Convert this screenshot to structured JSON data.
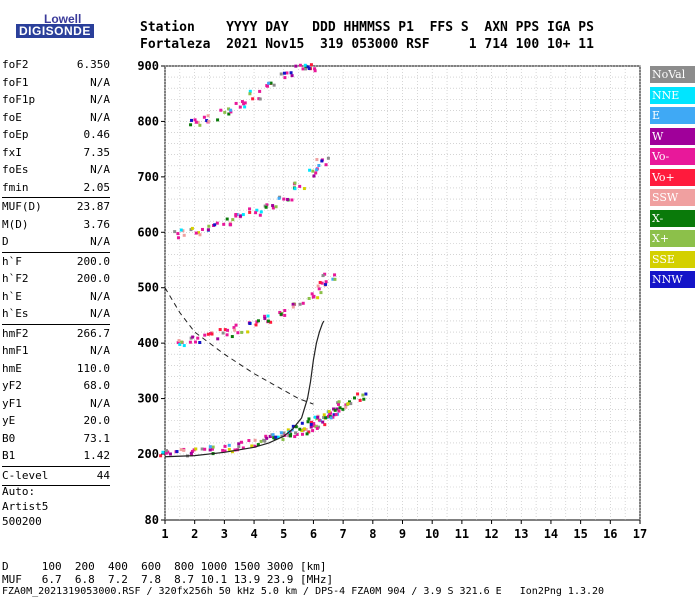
{
  "logo": {
    "line1": "Lowell",
    "line2": "DIGISONDE"
  },
  "header": {
    "line1": "Station    YYYY DAY   DDD HHMMSS P1  FFS S  AXN PPS IGA PS",
    "line2": "Fortaleza  2021 Nov15  319 053000 RSF     1 714 100 10+ 11"
  },
  "params": [
    {
      "label": "foF2",
      "value": "6.350"
    },
    {
      "label": "foF1",
      "value": "N/A"
    },
    {
      "label": "foF1p",
      "value": "N/A"
    },
    {
      "label": "foE",
      "value": "N/A"
    },
    {
      "label": "foEp",
      "value": "0.46"
    },
    {
      "label": "fxI",
      "value": "7.35"
    },
    {
      "label": "foEs",
      "value": "N/A"
    },
    {
      "label": "fmin",
      "value": "2.05"
    },
    {
      "label": "MUF(D)",
      "value": "23.87"
    },
    {
      "label": "M(D)",
      "value": "3.76"
    },
    {
      "label": "D",
      "value": "N/A"
    },
    {
      "label": "h`F",
      "value": "200.0"
    },
    {
      "label": "h`F2",
      "value": "200.0"
    },
    {
      "label": "h`E",
      "value": "N/A"
    },
    {
      "label": "h`Es",
      "value": "N/A"
    },
    {
      "label": "hmF2",
      "value": "266.7"
    },
    {
      "label": "hmF1",
      "value": "N/A"
    },
    {
      "label": "hmE",
      "value": "110.0"
    },
    {
      "label": "yF2",
      "value": "68.0"
    },
    {
      "label": "yF1",
      "value": "N/A"
    },
    {
      "label": "yE",
      "value": "20.0"
    },
    {
      "label": "B0",
      "value": "73.1"
    },
    {
      "label": "B1",
      "value": "1.42"
    },
    {
      "label": "C-level",
      "value": "44"
    }
  ],
  "auto": {
    "line1": "Auto:",
    "line2": "Artist5",
    "line3": "500200"
  },
  "legend": [
    {
      "label": "NoVal",
      "color": "#8c8c8c"
    },
    {
      "label": "NNE",
      "color": "#00e5ff"
    },
    {
      "label": "E",
      "color": "#3fa9f5"
    },
    {
      "label": "W",
      "color": "#a0009a"
    },
    {
      "label": "Vo-",
      "color": "#e8189a"
    },
    {
      "label": "Vo+",
      "color": "#ff1a3c"
    },
    {
      "label": "SSW",
      "color": "#f0a0a0"
    },
    {
      "label": "X-",
      "color": "#0a7a0a"
    },
    {
      "label": "X+",
      "color": "#8cc04a"
    },
    {
      "label": "SSE",
      "color": "#d4d000"
    },
    {
      "label": "NNW",
      "color": "#1414c8"
    }
  ],
  "chart_data": {
    "type": "scatter",
    "xlim": [
      1,
      17
    ],
    "ylim": [
      80,
      900
    ],
    "x_ticks": [
      1,
      2,
      3,
      4,
      5,
      6,
      7,
      8,
      9,
      10,
      11,
      12,
      13,
      14,
      15,
      16,
      17
    ],
    "y_ticks": [
      80,
      200,
      300,
      400,
      500,
      600,
      700,
      800,
      900
    ],
    "grid": true,
    "series": [
      {
        "label": "F2 trace",
        "color": "#e8189a",
        "x": [
          1.0,
          1.5,
          2.0,
          2.5,
          3.0,
          3.5,
          4.0,
          4.5,
          5.0,
          5.3,
          5.6,
          5.9,
          6.1,
          6.3,
          6.5,
          6.7,
          6.9
        ],
        "y": [
          205,
          206,
          208,
          210,
          213,
          217,
          222,
          228,
          235,
          240,
          245,
          252,
          258,
          266,
          272,
          280,
          290
        ]
      },
      {
        "label": "2nd hop",
        "color": "#e8189a",
        "x": [
          1.5,
          2.0,
          2.5,
          3.0,
          3.5,
          4.0,
          4.5,
          5.0,
          5.5,
          6.0,
          6.3,
          6.5
        ],
        "y": [
          405,
          410,
          415,
          420,
          428,
          436,
          446,
          458,
          472,
          490,
          505,
          520
        ]
      },
      {
        "label": "3rd hop",
        "color": "#e8189a",
        "x": [
          1.5,
          2.0,
          2.5,
          3.0,
          3.5,
          4.0,
          4.5,
          5.0,
          5.5,
          6.0,
          6.3
        ],
        "y": [
          600,
          605,
          612,
          620,
          630,
          640,
          652,
          668,
          686,
          710,
          730
        ]
      },
      {
        "label": "4th hop",
        "color": "#e8189a",
        "x": [
          2.0,
          2.5,
          3.0,
          3.5,
          4.0,
          4.5,
          5.0,
          5.5,
          6.0
        ],
        "y": [
          800,
          808,
          820,
          835,
          850,
          868,
          885,
          900,
          900
        ]
      },
      {
        "label": "X trace",
        "color": "#0a7a0a",
        "x": [
          4.5,
          5.0,
          5.5,
          6.0,
          6.5,
          7.0,
          7.5
        ],
        "y": [
          232,
          240,
          252,
          262,
          275,
          290,
          305
        ]
      }
    ],
    "profile_curve": {
      "x": [
        1.0,
        2.0,
        3.0,
        4.0,
        4.5,
        5.0,
        5.3,
        5.6,
        5.8,
        5.9,
        6.0,
        6.1,
        6.2,
        6.3,
        6.35
      ],
      "y": [
        195,
        197,
        203,
        212,
        220,
        232,
        245,
        265,
        300,
        330,
        370,
        400,
        420,
        435,
        440
      ]
    },
    "dashed_curve": {
      "x": [
        1.0,
        1.5,
        2.0,
        3.0,
        4.0,
        5.0,
        5.5,
        6.0
      ],
      "y": [
        500,
        455,
        420,
        380,
        345,
        315,
        300,
        290
      ]
    }
  },
  "footer": {
    "line1": "D     100  200  400  600  800 1000 1500 3000 [km]",
    "line2": "MUF   6.7  6.8  7.2  7.8  8.7 10.1 13.9 23.9 [MHz]",
    "line3": "FZA0M_2021319053000.RSF / 320fx256h 50 kHz 5.0 km / DPS-4 FZA0M 904 / 3.9 S 321.6 E   Ion2Png 1.3.20"
  }
}
